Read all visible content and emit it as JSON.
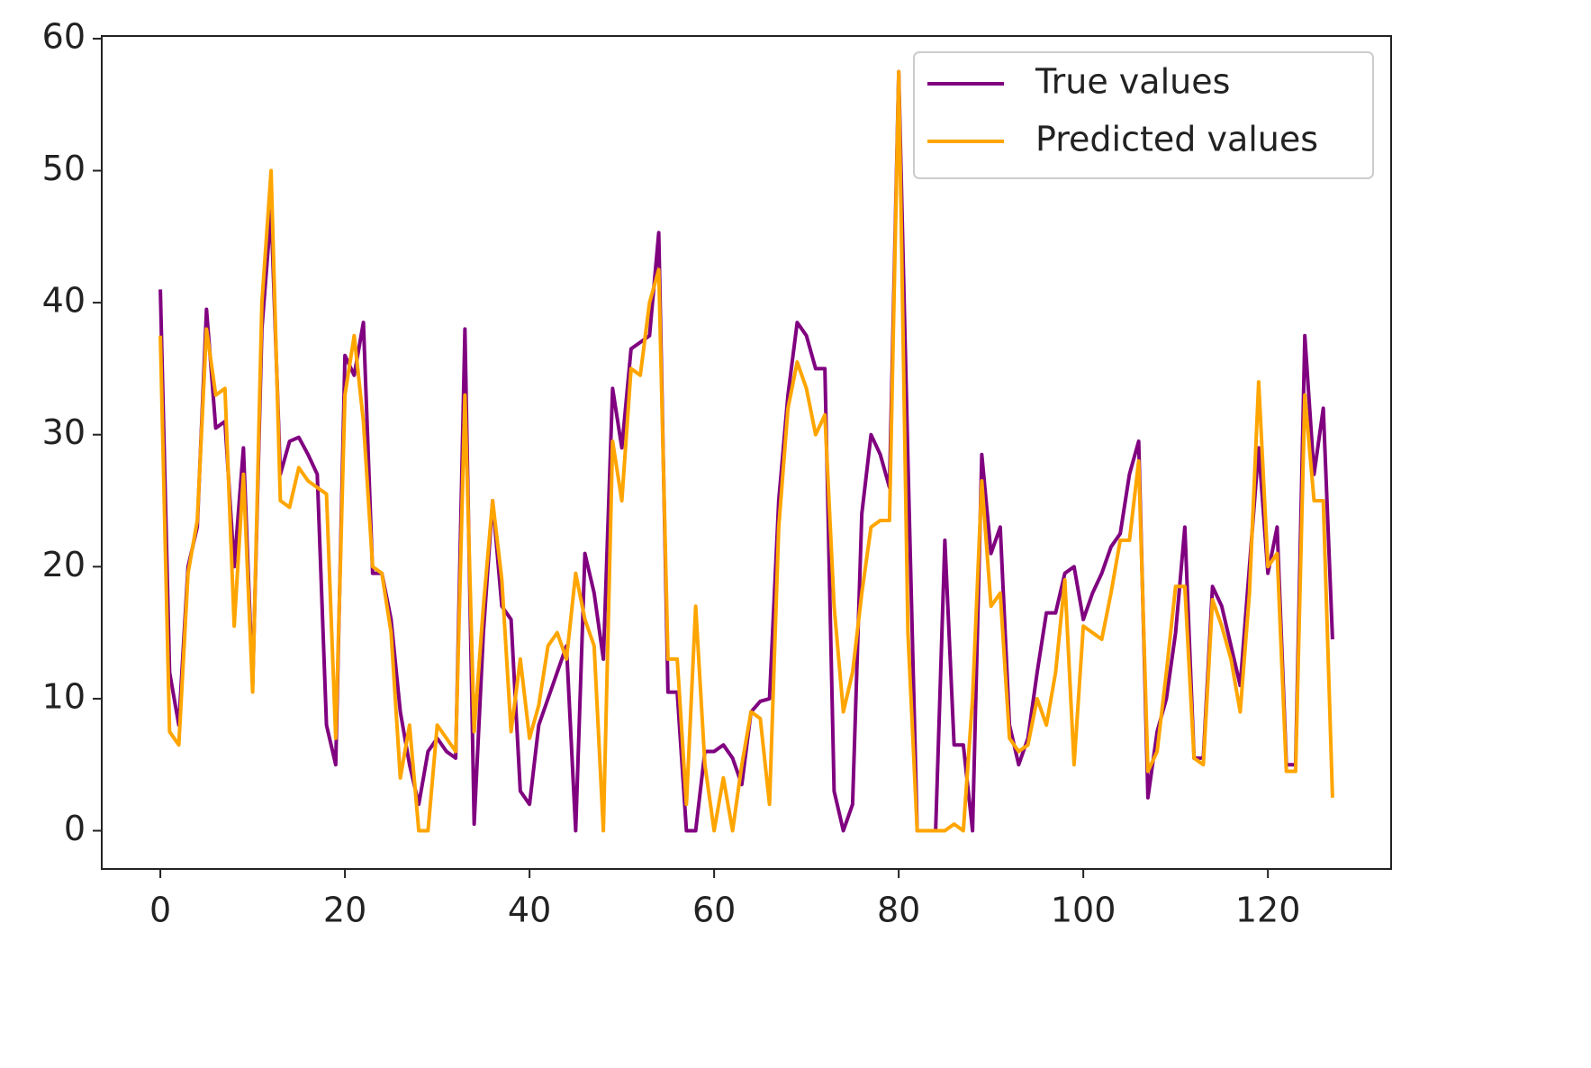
{
  "chart_data": {
    "type": "line",
    "x": [
      0,
      1,
      2,
      3,
      4,
      5,
      6,
      7,
      8,
      9,
      10,
      11,
      12,
      13,
      14,
      15,
      16,
      17,
      18,
      19,
      20,
      21,
      22,
      23,
      24,
      25,
      26,
      27,
      28,
      29,
      30,
      31,
      32,
      33,
      34,
      35,
      36,
      37,
      38,
      39,
      40,
      41,
      42,
      43,
      44,
      45,
      46,
      47,
      48,
      49,
      50,
      51,
      52,
      53,
      54,
      55,
      56,
      57,
      58,
      59,
      60,
      61,
      62,
      63,
      64,
      65,
      66,
      67,
      68,
      69,
      70,
      71,
      72,
      73,
      74,
      75,
      76,
      77,
      78,
      79,
      80,
      81,
      82,
      83,
      84,
      85,
      86,
      87,
      88,
      89,
      90,
      91,
      92,
      93,
      94,
      95,
      96,
      97,
      98,
      99,
      100,
      101,
      102,
      103,
      104,
      105,
      106,
      107,
      108,
      109,
      110,
      111,
      112,
      113,
      114,
      115,
      116,
      117,
      118,
      119,
      120,
      121,
      122,
      123,
      124,
      125,
      126,
      127
    ],
    "series": [
      {
        "name": "True values",
        "color": "#800080",
        "values": [
          41,
          12,
          8,
          20,
          23,
          39.5,
          30.5,
          31,
          20,
          29,
          11,
          38,
          47,
          27,
          29.5,
          29.8,
          28.5,
          27,
          8,
          5,
          36,
          34.5,
          38.5,
          19.5,
          19.5,
          16,
          9,
          5,
          2,
          6,
          7,
          6,
          5.5,
          38,
          0.5,
          15,
          25,
          17,
          16,
          3,
          2,
          8,
          10,
          12,
          14,
          0,
          21,
          18,
          13,
          33.5,
          29,
          36.5,
          37,
          37.5,
          45.3,
          10.5,
          10.5,
          0,
          0,
          6,
          6,
          6.5,
          5.5,
          3.5,
          9,
          9.8,
          10,
          25,
          33,
          38.5,
          37.5,
          35,
          35,
          3,
          0,
          2,
          24,
          30,
          28.5,
          26,
          57.5,
          28,
          0,
          0,
          0,
          22,
          6.5,
          6.5,
          0,
          28.5,
          21,
          23,
          8,
          5,
          7,
          12,
          16.5,
          16.5,
          19.5,
          20,
          16,
          18,
          19.5,
          21.5,
          22.5,
          27,
          29.5,
          2.5,
          7.5,
          10,
          15,
          23,
          5.5,
          5.5,
          18.5,
          17,
          14,
          11,
          20,
          29,
          19.5,
          23,
          5,
          5,
          37.5,
          27,
          32,
          14.5
        ]
      },
      {
        "name": "Predicted values",
        "color": "#ffa500",
        "values": [
          37.5,
          7.5,
          6.5,
          19.5,
          23.5,
          38,
          33,
          33.5,
          15.5,
          27,
          10.5,
          40,
          50,
          25,
          24.5,
          27.5,
          26.5,
          26,
          25.5,
          7,
          33,
          37.5,
          31,
          20,
          19.5,
          15,
          4,
          8,
          0,
          0,
          8,
          7,
          6,
          33,
          7.5,
          17,
          25,
          19,
          7.5,
          13,
          7,
          9.5,
          14,
          15,
          13,
          19.5,
          16,
          14,
          0,
          29.5,
          25,
          35,
          34.5,
          40,
          42.5,
          13,
          13,
          2,
          17,
          5,
          0,
          4,
          0,
          5,
          9,
          8.5,
          2,
          23,
          32,
          35.5,
          33.5,
          30,
          31.5,
          17,
          9,
          12,
          18,
          23,
          23.5,
          23.5,
          57.5,
          15,
          0,
          0,
          0,
          0,
          0.5,
          0,
          10,
          26.5,
          17,
          18,
          7,
          6,
          6.5,
          10,
          8,
          12,
          19,
          5,
          15.5,
          15,
          14.5,
          18,
          22,
          22,
          28,
          4.5,
          6,
          12,
          18.5,
          18.5,
          5.5,
          5,
          17.5,
          15.5,
          13,
          9,
          18,
          34,
          20,
          21,
          4.5,
          4.5,
          33,
          25,
          25,
          2.5
        ]
      }
    ],
    "xlim": [
      -6.35,
      133.35
    ],
    "ylim": [
      -2.9,
      60.2
    ],
    "xticks": [
      0,
      20,
      40,
      60,
      80,
      100,
      120
    ],
    "yticks": [
      0,
      10,
      20,
      30,
      40,
      50,
      60
    ],
    "legend": "upper right"
  }
}
